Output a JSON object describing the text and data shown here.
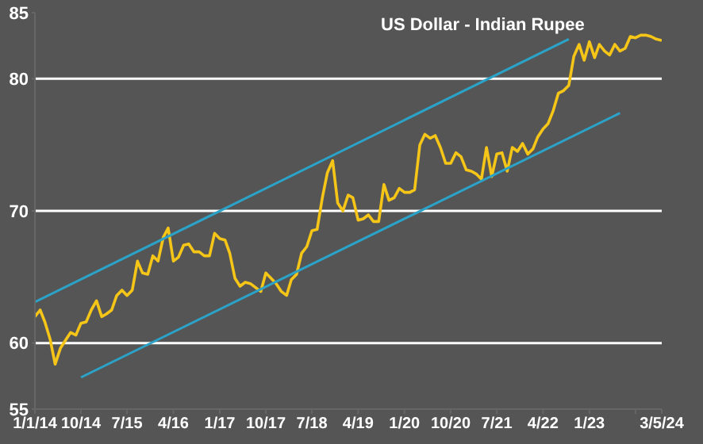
{
  "chart_data": {
    "type": "line",
    "title": "US Dollar - Indian Rupee",
    "xlim": [
      "2014-01-01",
      "2024-03-05"
    ],
    "xticks": [
      {
        "value": "2014-01-01",
        "label": "1/1/14"
      },
      {
        "value": "2014-10-01",
        "label": "10/14"
      },
      {
        "value": "2015-07-01",
        "label": "7/15"
      },
      {
        "value": "2016-04-01",
        "label": "4/16"
      },
      {
        "value": "2017-01-01",
        "label": "1/17"
      },
      {
        "value": "2017-10-01",
        "label": "10/17"
      },
      {
        "value": "2018-07-01",
        "label": "7/18"
      },
      {
        "value": "2019-04-01",
        "label": "4/19"
      },
      {
        "value": "2020-01-01",
        "label": "1/20"
      },
      {
        "value": "2020-10-01",
        "label": "10/20"
      },
      {
        "value": "2021-07-01",
        "label": "7/21"
      },
      {
        "value": "2022-04-01",
        "label": "4/22"
      },
      {
        "value": "2023-01-01",
        "label": "1/23"
      },
      {
        "value": "2023-10-01",
        "label": null
      },
      {
        "value": "2024-03-05",
        "label": "3/5/24"
      }
    ],
    "ylim": [
      55,
      85
    ],
    "yticks": [
      55,
      60,
      70,
      80,
      85
    ],
    "ref_lines": [
      {
        "axis": "y",
        "value": 60,
        "color": "#ffffff"
      },
      {
        "axis": "y",
        "value": 70,
        "color": "#ffffff"
      },
      {
        "axis": "y",
        "value": 80,
        "color": "#ffffff"
      }
    ],
    "series": [
      {
        "color": "#f5c518",
        "x": [
          "2014-01-01",
          "2014-02-01",
          "2014-03-01",
          "2014-04-01",
          "2014-05-01",
          "2014-06-01",
          "2014-07-01",
          "2014-08-01",
          "2014-09-01",
          "2014-10-01",
          "2014-11-01",
          "2014-12-01",
          "2015-01-01",
          "2015-02-01",
          "2015-03-01",
          "2015-04-01",
          "2015-05-01",
          "2015-06-01",
          "2015-07-01",
          "2015-08-01",
          "2015-09-01",
          "2015-10-01",
          "2015-11-01",
          "2015-12-01",
          "2016-01-01",
          "2016-02-01",
          "2016-03-01",
          "2016-04-01",
          "2016-05-01",
          "2016-06-01",
          "2016-07-01",
          "2016-08-01",
          "2016-09-01",
          "2016-10-01",
          "2016-11-01",
          "2016-12-01",
          "2017-01-01",
          "2017-02-01",
          "2017-03-01",
          "2017-04-01",
          "2017-05-01",
          "2017-06-01",
          "2017-07-01",
          "2017-08-01",
          "2017-09-01",
          "2017-10-01",
          "2017-11-01",
          "2017-12-01",
          "2018-01-01",
          "2018-02-01",
          "2018-03-01",
          "2018-04-01",
          "2018-05-01",
          "2018-06-01",
          "2018-07-01",
          "2018-08-01",
          "2018-09-01",
          "2018-10-01",
          "2018-11-01",
          "2018-12-01",
          "2019-01-01",
          "2019-02-01",
          "2019-03-01",
          "2019-04-01",
          "2019-05-01",
          "2019-06-01",
          "2019-07-01",
          "2019-08-01",
          "2019-09-01",
          "2019-10-01",
          "2019-11-01",
          "2019-12-01",
          "2020-01-01",
          "2020-02-01",
          "2020-03-01",
          "2020-04-01",
          "2020-05-01",
          "2020-06-01",
          "2020-07-01",
          "2020-08-01",
          "2020-09-01",
          "2020-10-01",
          "2020-11-01",
          "2020-12-01",
          "2021-01-01",
          "2021-02-01",
          "2021-03-01",
          "2021-04-01",
          "2021-05-01",
          "2021-06-01",
          "2021-07-01",
          "2021-08-01",
          "2021-09-01",
          "2021-10-01",
          "2021-11-01",
          "2021-12-01",
          "2022-01-01",
          "2022-02-01",
          "2022-03-01",
          "2022-04-01",
          "2022-05-01",
          "2022-06-01",
          "2022-07-01",
          "2022-08-01",
          "2022-09-01",
          "2022-10-01",
          "2022-11-01",
          "2022-12-01",
          "2023-01-01",
          "2023-02-01",
          "2023-03-01",
          "2023-04-01",
          "2023-05-01",
          "2023-06-01",
          "2023-07-01",
          "2023-08-01",
          "2023-09-01",
          "2023-10-01",
          "2023-11-01",
          "2023-12-01",
          "2024-01-01",
          "2024-02-01",
          "2024-03-05"
        ],
        "values": [
          62.0,
          62.5,
          61.6,
          60.3,
          58.4,
          59.6,
          60.2,
          60.8,
          60.6,
          61.5,
          61.6,
          62.5,
          63.2,
          62.0,
          62.2,
          62.5,
          63.6,
          64.0,
          63.6,
          64.0,
          66.2,
          65.3,
          65.2,
          66.6,
          66.2,
          68.0,
          68.7,
          66.2,
          66.5,
          67.4,
          67.5,
          66.9,
          66.9,
          66.6,
          66.6,
          68.3,
          67.9,
          67.8,
          66.8,
          64.9,
          64.3,
          64.6,
          64.5,
          64.2,
          63.9,
          65.3,
          64.9,
          64.5,
          63.9,
          63.6,
          64.8,
          65.2,
          66.8,
          67.3,
          68.5,
          68.6,
          71.0,
          72.9,
          73.8,
          70.6,
          70.0,
          71.2,
          71.0,
          69.3,
          69.4,
          69.7,
          69.2,
          69.2,
          72.0,
          70.8,
          71.0,
          71.7,
          71.4,
          71.4,
          71.6,
          75.0,
          75.8,
          75.5,
          75.7,
          74.8,
          73.6,
          73.6,
          74.4,
          74.1,
          73.1,
          73.0,
          72.8,
          72.4,
          74.8,
          72.6,
          74.3,
          74.4,
          73.0,
          74.8,
          74.5,
          75.1,
          74.3,
          74.7,
          75.6,
          76.2,
          76.6,
          77.6,
          78.9,
          79.1,
          79.5,
          81.7,
          82.6,
          81.4,
          82.8,
          81.6,
          82.6,
          82.1,
          81.8,
          82.6,
          82.1,
          82.3,
          83.2,
          83.1,
          83.3,
          83.3,
          83.2,
          83.0,
          82.9
        ]
      },
      {
        "color": "#2ba3c8",
        "x": [
          "2014-01-01",
          "2022-09-01"
        ],
        "values": [
          63.1,
          83.0
        ]
      },
      {
        "color": "#2ba3c8",
        "x": [
          "2014-10-01",
          "2023-07-01"
        ],
        "values": [
          57.4,
          77.4
        ]
      }
    ]
  }
}
